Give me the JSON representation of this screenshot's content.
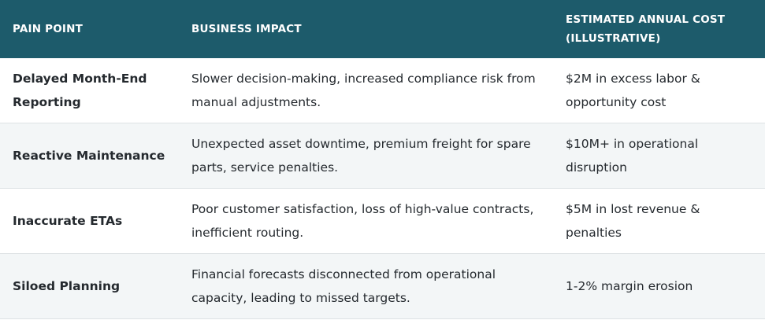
{
  "headers": [
    "Pain Point",
    "Business Impact",
    "Estimated Annual Cost (Illustrative)"
  ],
  "rows": [
    {
      "pain": "Delayed Month-End Reporting",
      "impact": "Slower decision-making, increased compliance risk from manual adjustments.",
      "cost": "$2M in excess labor & opportunity cost"
    },
    {
      "pain": "Reactive Maintenance",
      "impact": "Unexpected asset downtime, premium freight for spare parts, service penalties.",
      "cost": "$10M+ in operational disruption"
    },
    {
      "pain": "Inaccurate ETAs",
      "impact": "Poor customer satisfaction, loss of high-value contracts, inefficient routing.",
      "cost": "$5M in lost revenue & penalties"
    },
    {
      "pain": "Siloed Planning",
      "impact": "Financial forecasts disconnected from operational capacity, leading to missed targets.",
      "cost": "1-2% margin erosion"
    }
  ],
  "colors": {
    "header_bg": "#1d5b6b",
    "stripe": "#f3f6f7"
  }
}
